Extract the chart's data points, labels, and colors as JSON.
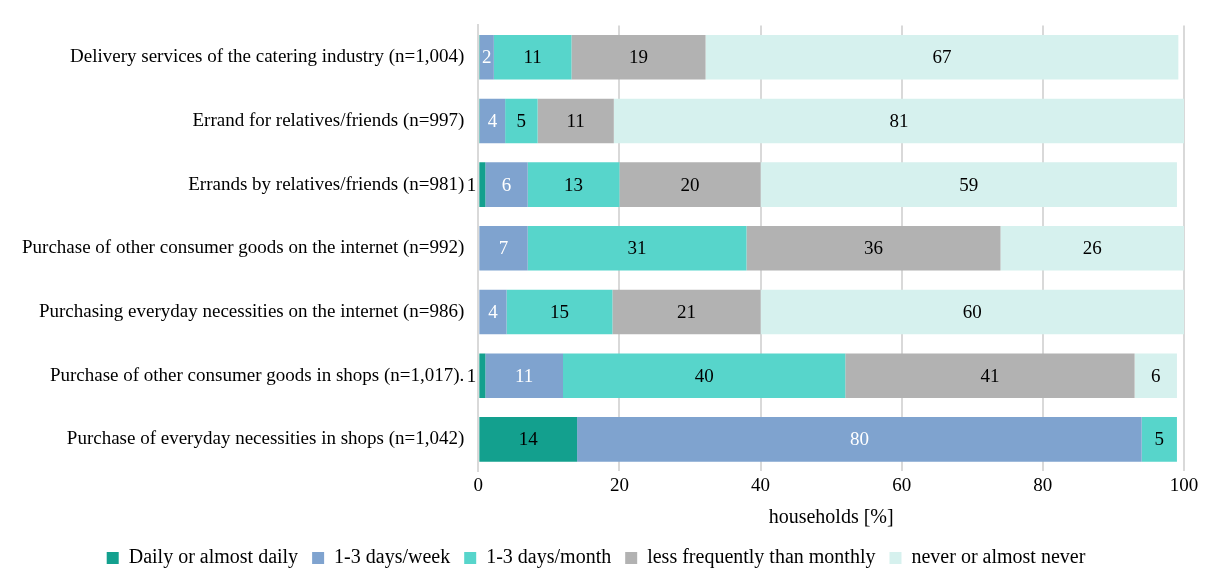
{
  "chart_data": {
    "type": "bar",
    "orientation": "horizontal",
    "stacked": true,
    "xlabel": "households [%]",
    "categories": [
      "Delivery services of the catering industry (n=1,004)",
      "Errand for relatives/friends (n=997)",
      "Errands by relatives/friends (n=981)",
      "Purchase of other consumer goods on the internet (n=992)",
      "Purchasing everyday necessities on the internet (n=986)",
      "Purchase of other consumer goods in shops (n=1,017).",
      "Purchase of everyday necessities in shops (n=1,042)"
    ],
    "series": [
      {
        "name": "Daily or almost daily",
        "color": "#13a08e",
        "values": [
          0.2,
          0.2,
          1,
          0,
          0,
          1,
          14
        ],
        "value_labels": [
          null,
          null,
          "1",
          null,
          null,
          "1",
          "14"
        ]
      },
      {
        "name": "1-3 days/week",
        "color": "#7fa3cf",
        "values": [
          2,
          3.6,
          6,
          7,
          4,
          11,
          80
        ],
        "value_labels": [
          "2",
          "4",
          "6",
          "7",
          "4",
          "11",
          "80"
        ]
      },
      {
        "name": "1-3 days/month",
        "color": "#57d5cb",
        "values": [
          11,
          4.6,
          13,
          31,
          15,
          40,
          5
        ],
        "value_labels": [
          "11",
          "5",
          "13",
          "31",
          "15",
          "40",
          "5"
        ]
      },
      {
        "name": "less frequently than monthly",
        "color": "#b2b2b2",
        "values": [
          19,
          10.8,
          20,
          36,
          21,
          41,
          0
        ],
        "value_labels": [
          "19",
          "11",
          "20",
          "36",
          "21",
          "41",
          null
        ]
      },
      {
        "name": "never or almost never",
        "color": "#d6f1ee",
        "values": [
          67,
          80.8,
          59,
          26,
          60,
          6,
          0
        ],
        "value_labels": [
          "67",
          "81",
          "59",
          "26",
          "60",
          "6",
          null
        ]
      }
    ],
    "xlim": [
      0,
      100
    ],
    "xticks": [
      0,
      20,
      40,
      60,
      80,
      100
    ],
    "grid": "x",
    "legend": "bottom"
  }
}
